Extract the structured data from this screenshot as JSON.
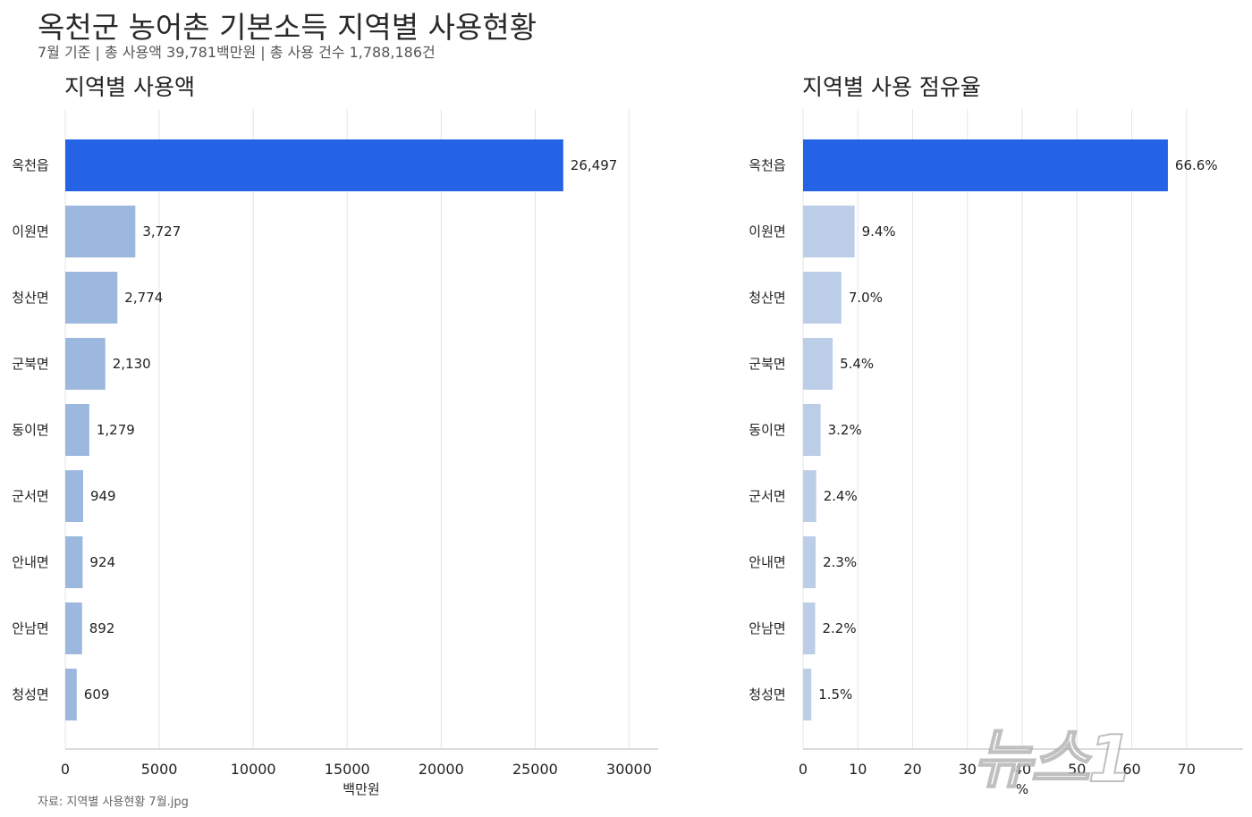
{
  "title": "옥천군 농어촌 기본소득 지역별 사용현황",
  "subtitle": "7월 기준  |  총 사용액 39,781백만원  |  총 사용 건수 1,788,186건",
  "source": "자료: 지역별 사용현황 7월.jpg",
  "watermark": "뉴스1",
  "colors": {
    "highlight": "#2563e6",
    "amount_bar": "#9db8de",
    "share_bar": "#bccde8",
    "grid": "#e6e6e6",
    "axis": "#cfcfcf"
  },
  "chart_data": [
    {
      "type": "bar",
      "orientation": "horizontal",
      "title": "지역별 사용액",
      "xlabel": "백만원",
      "ylabel": "",
      "categories": [
        "옥천읍",
        "이원면",
        "청산면",
        "군북면",
        "동이면",
        "군서면",
        "안내면",
        "안남면",
        "청성면"
      ],
      "values": [
        26497,
        3727,
        2774,
        2130,
        1279,
        949,
        924,
        892,
        609
      ],
      "value_labels": [
        "26,497",
        "3,727",
        "2,774",
        "2,130",
        "1,279",
        "949",
        "924",
        "892",
        "609"
      ],
      "xlim": [
        0,
        31500
      ],
      "ticks": [
        0,
        5000,
        10000,
        15000,
        20000,
        25000,
        30000
      ],
      "tick_labels": [
        "0",
        "5000",
        "10000",
        "15000",
        "20000",
        "25000",
        "30000"
      ],
      "highlight_index": 0,
      "grid": "vertical"
    },
    {
      "type": "bar",
      "orientation": "horizontal",
      "title": "지역별 사용 점유율",
      "xlabel": "%",
      "ylabel": "",
      "categories": [
        "옥천읍",
        "이원면",
        "청산면",
        "군북면",
        "동이면",
        "군서면",
        "안내면",
        "안남면",
        "청성면"
      ],
      "values": [
        66.6,
        9.4,
        7.0,
        5.4,
        3.2,
        2.4,
        2.3,
        2.2,
        1.5
      ],
      "value_labels": [
        "66.6%",
        "9.4%",
        "7.0%",
        "5.4%",
        "3.2%",
        "2.4%",
        "2.3%",
        "2.2%",
        "1.5%"
      ],
      "xlim": [
        0,
        80
      ],
      "ticks": [
        0,
        10,
        20,
        30,
        40,
        50,
        60,
        70
      ],
      "tick_labels": [
        "0",
        "10",
        "20",
        "30",
        "40",
        "50",
        "60",
        "70"
      ],
      "highlight_index": 0,
      "grid": "vertical"
    }
  ]
}
